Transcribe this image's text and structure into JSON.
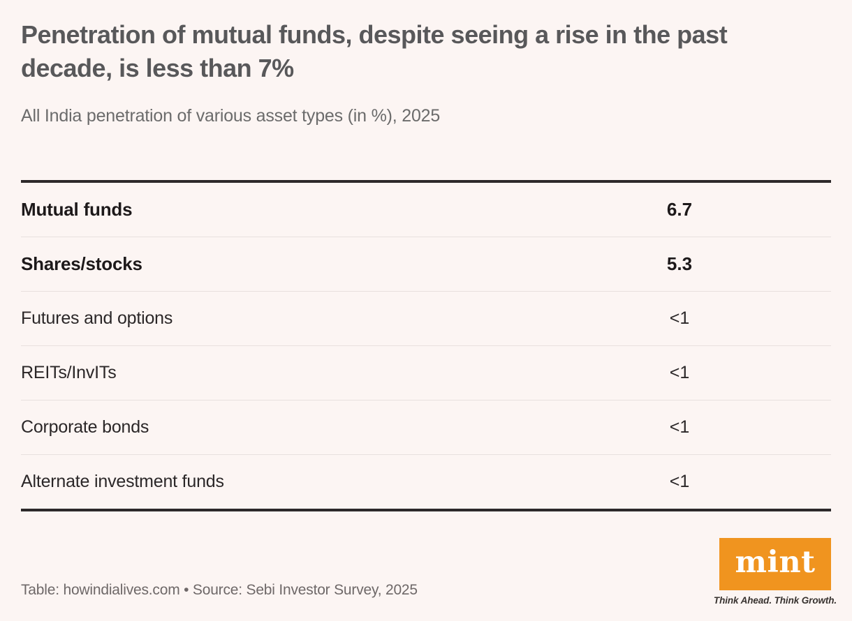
{
  "page": {
    "background_color": "#fcf5f3",
    "accent_color": "#f0941f",
    "rule_color": "#2d292a",
    "divider_color": "#e8e0de"
  },
  "header": {
    "title_lines": [
      "Penetration of mutual funds, despite seeing a rise in the past decade, is less than 7%"
    ],
    "subtitle": "All India penetration of various asset types (in %), 2025"
  },
  "table": {
    "rows": [
      {
        "label": "Mutual funds",
        "value": "6.7"
      },
      {
        "label": "Shares/stocks",
        "value": "5.3"
      },
      {
        "label": "Futures and options",
        "value": "<1"
      },
      {
        "label": "REITs/InvITs",
        "value": "<1"
      },
      {
        "label": "Corporate bonds",
        "value": "<1"
      },
      {
        "label": "Alternate investment funds",
        "value": "<1"
      }
    ]
  },
  "footer": {
    "credit": "Table: howindialives.com • Source: Sebi Investor Survey, 2025",
    "logo": {
      "text": "mint",
      "tagline": "Think Ahead. Think Growth.",
      "color": "#f0941f"
    }
  },
  "chart_data": {
    "type": "table",
    "title": "Penetration of mutual funds, despite seeing a rise in the past decade, is less than 7%",
    "subtitle": "All India penetration of various asset types (in %), 2025",
    "categories": [
      "Mutual funds",
      "Shares/stocks",
      "Futures and options",
      "REITs/InvITs",
      "Corporate bonds",
      "Alternate investment funds"
    ],
    "values": [
      "6.7",
      "5.3",
      "<1",
      "<1",
      "<1",
      "<1"
    ],
    "unit": "%",
    "year": "2025",
    "emphasized_rows": [
      "Mutual funds",
      "Shares/stocks"
    ]
  }
}
